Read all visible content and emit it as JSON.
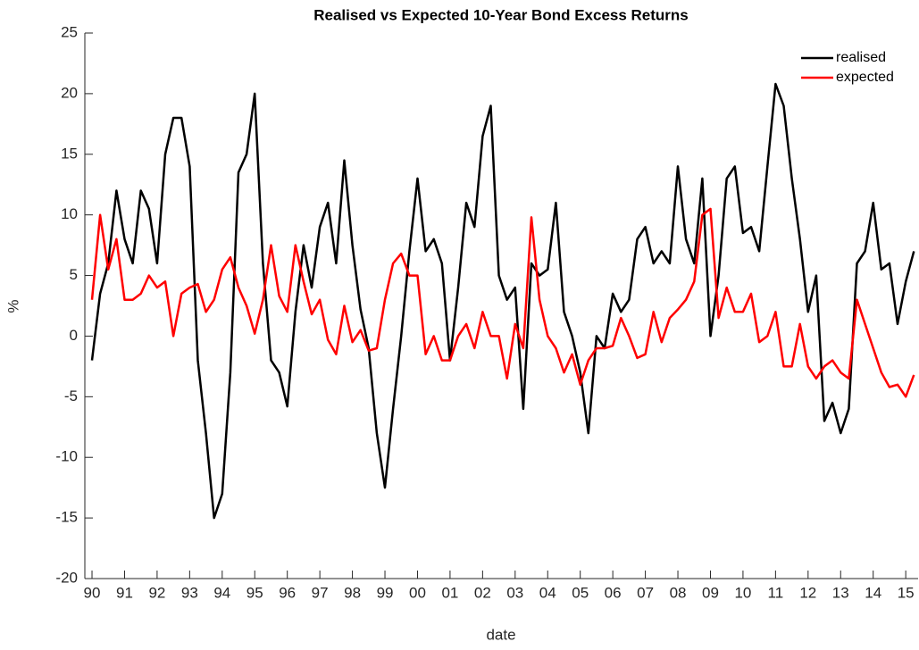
{
  "chart_data": {
    "type": "line",
    "title": "Realised vs Expected 10-Year Bond Excess Returns",
    "xlabel": "date",
    "ylabel": "%",
    "x": [
      1990,
      1990.25,
      1990.5,
      1990.75,
      1991,
      1991.25,
      1991.5,
      1991.75,
      1992,
      1992.25,
      1992.5,
      1992.75,
      1993,
      1993.25,
      1993.5,
      1993.75,
      1994,
      1994.25,
      1994.5,
      1994.75,
      1995,
      1995.25,
      1995.5,
      1995.75,
      1996,
      1996.25,
      1996.5,
      1996.75,
      1997,
      1997.25,
      1997.5,
      1997.75,
      1998,
      1998.25,
      1998.5,
      1998.75,
      1999,
      1999.25,
      1999.5,
      1999.75,
      2000,
      2000.25,
      2000.5,
      2000.75,
      2001,
      2001.25,
      2001.5,
      2001.75,
      2002,
      2002.25,
      2002.5,
      2002.75,
      2003,
      2003.25,
      2003.5,
      2003.75,
      2004,
      2004.25,
      2004.5,
      2004.75,
      2005,
      2005.25,
      2005.5,
      2005.75,
      2006,
      2006.25,
      2006.5,
      2006.75,
      2007,
      2007.25,
      2007.5,
      2007.75,
      2008,
      2008.25,
      2008.5,
      2008.75,
      2009,
      2009.25,
      2009.5,
      2009.75,
      2010,
      2010.25,
      2010.5,
      2010.75,
      2011,
      2011.25,
      2011.5,
      2011.75,
      2012,
      2012.25,
      2012.5,
      2012.75,
      2013,
      2013.25,
      2013.5,
      2013.75,
      2014,
      2014.25,
      2014.5,
      2014.75,
      2015,
      2015.25
    ],
    "series": [
      {
        "name": "realised",
        "color": "#000000",
        "values": [
          -2,
          3.5,
          6,
          12,
          8,
          6,
          12,
          10.5,
          6,
          15,
          18,
          18,
          14,
          -2,
          -8,
          -15,
          -13,
          -3,
          13.5,
          15,
          20,
          6,
          -2,
          -3,
          -5.8,
          2,
          7.5,
          4,
          9,
          11,
          6,
          14.5,
          7.5,
          2.2,
          -1,
          -8,
          -12.5,
          -6,
          0,
          7,
          13,
          7,
          8,
          6,
          -2,
          4,
          11,
          9,
          16.5,
          19,
          5,
          3,
          4,
          -6,
          6,
          5,
          5.5,
          11,
          2,
          0,
          -3,
          -8,
          0,
          -1,
          3.5,
          2,
          3,
          8,
          9,
          6,
          7,
          6,
          14,
          8,
          6,
          13,
          0,
          5,
          13,
          14,
          8.5,
          9,
          7,
          14,
          20.8,
          19,
          13,
          8,
          2,
          5,
          -7,
          -5.5,
          -8,
          -6,
          6,
          7,
          11,
          5.5,
          6,
          1,
          4.5,
          7
        ]
      },
      {
        "name": "expected",
        "color": "#ff0000",
        "values": [
          3,
          10,
          5.5,
          8,
          3,
          3,
          3.5,
          5,
          4,
          4.5,
          0,
          3.5,
          4,
          4.3,
          2,
          3,
          5.5,
          6.5,
          4,
          2.5,
          0.2,
          3,
          7.5,
          3.3,
          2,
          7.5,
          4.5,
          1.8,
          3,
          -0.3,
          -1.5,
          2.5,
          -0.5,
          0.5,
          -1.2,
          -1,
          3,
          6,
          6.8,
          5,
          5,
          -1.5,
          0,
          -2,
          -2,
          0,
          1,
          -1,
          2,
          0,
          0,
          -3.5,
          1,
          -1,
          9.8,
          3,
          0,
          -1,
          -3,
          -1.5,
          -4,
          -2,
          -1,
          -1,
          -0.8,
          1.5,
          0,
          -1.8,
          -1.5,
          2,
          -0.5,
          1.5,
          2.2,
          3,
          4.5,
          10,
          10.5,
          1.5,
          4,
          2,
          2,
          3.5,
          -0.5,
          0,
          2,
          -2.5,
          -2.5,
          1,
          -2.5,
          -3.5,
          -2.5,
          -2,
          -3,
          -3.5,
          3,
          1,
          -1,
          -3,
          -4.2,
          -4,
          -5,
          -3.2
        ]
      }
    ],
    "xlim": [
      1989.78,
      2015.38
    ],
    "xticks": [
      {
        "value": 1990,
        "label": "90"
      },
      {
        "value": 1991,
        "label": "91"
      },
      {
        "value": 1992,
        "label": "92"
      },
      {
        "value": 1993,
        "label": "93"
      },
      {
        "value": 1994,
        "label": "94"
      },
      {
        "value": 1995,
        "label": "95"
      },
      {
        "value": 1996,
        "label": "96"
      },
      {
        "value": 1997,
        "label": "97"
      },
      {
        "value": 1998,
        "label": "98"
      },
      {
        "value": 1999,
        "label": "99"
      },
      {
        "value": 2000,
        "label": "00"
      },
      {
        "value": 2001,
        "label": "01"
      },
      {
        "value": 2002,
        "label": "02"
      },
      {
        "value": 2003,
        "label": "03"
      },
      {
        "value": 2004,
        "label": "04"
      },
      {
        "value": 2005,
        "label": "05"
      },
      {
        "value": 2006,
        "label": "06"
      },
      {
        "value": 2007,
        "label": "07"
      },
      {
        "value": 2008,
        "label": "08"
      },
      {
        "value": 2009,
        "label": "09"
      },
      {
        "value": 2010,
        "label": "10"
      },
      {
        "value": 2011,
        "label": "11"
      },
      {
        "value": 2012,
        "label": "12"
      },
      {
        "value": 2013,
        "label": "13"
      },
      {
        "value": 2014,
        "label": "14"
      },
      {
        "value": 2015,
        "label": "15"
      }
    ],
    "ylim": [
      -20,
      25
    ],
    "yticks": [
      -20,
      -15,
      -10,
      -5,
      0,
      5,
      10,
      15,
      20,
      25
    ],
    "grid": false,
    "legend": "northeast"
  }
}
